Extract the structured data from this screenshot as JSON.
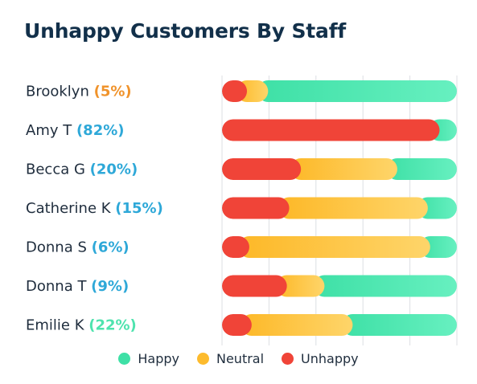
{
  "chart_data": {
    "type": "bar",
    "orientation": "horizontal",
    "stacked": true,
    "title": "Unhappy Customers By Staff",
    "xlim": [
      0,
      100
    ],
    "grid": true,
    "legend_position": "bottom-center",
    "categories": [
      "Brooklyn",
      "Amy T",
      "Becca G",
      "Catherine K",
      "Donna S",
      "Donna T",
      "Emilie K"
    ],
    "labels": [
      "(5%)",
      "(82%)",
      "(20%)",
      "(15%)",
      "(6%)",
      "(9%)",
      "(22%)"
    ],
    "label_colors": [
      "#f0932b",
      "#2ea8d8",
      "#2ea8d8",
      "#2ea8d8",
      "#2ea8d8",
      "#2ea8d8",
      "#4ee3ae"
    ],
    "series": [
      {
        "name": "Unhappy",
        "color": "#f04438",
        "values": [
          6,
          88,
          29,
          24,
          7,
          23,
          8
        ]
      },
      {
        "name": "Neutral",
        "color": "#fdbb2d",
        "values": [
          9,
          0,
          41,
          59,
          77,
          16,
          43
        ]
      },
      {
        "name": "Happy",
        "color": "#3ee0a6",
        "values": [
          85,
          12,
          30,
          17,
          16,
          61,
          49
        ]
      }
    ],
    "legend": [
      {
        "name": "Happy",
        "color": "#3ee0a6"
      },
      {
        "name": "Neutral",
        "color": "#fdbb2d"
      },
      {
        "name": "Unhappy",
        "color": "#f04438"
      }
    ]
  }
}
